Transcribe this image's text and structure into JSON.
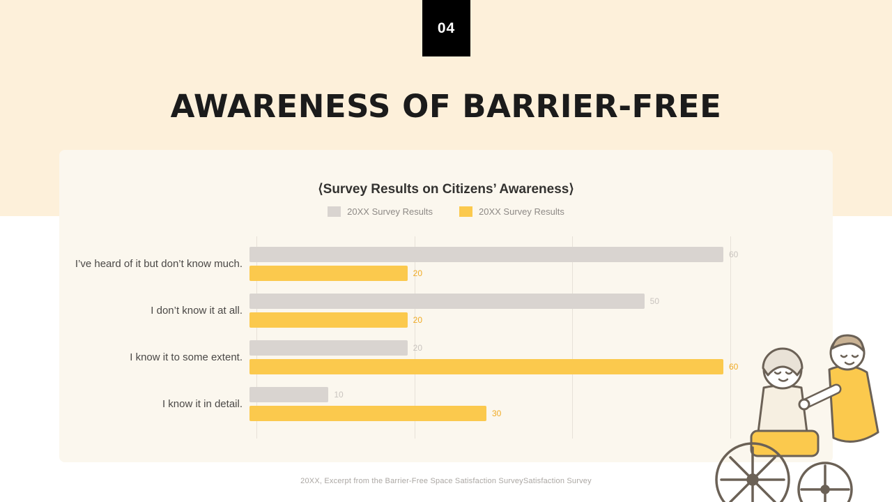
{
  "slide": {
    "badge": "04",
    "title": "AWARENESS OF BARRIER-FREE",
    "footer": "20XX, Excerpt from the Barrier-Free Space Satisfaction SurveySatisfaction Survey"
  },
  "chart_data": {
    "type": "bar",
    "orientation": "horizontal",
    "title": "⟨Survey Results on Citizens’ Awareness⟩",
    "categories": [
      "I’ve heard of it but don’t know much.",
      "I don’t know it at all.",
      "I know it to some extent.",
      "I know it in detail."
    ],
    "series": [
      {
        "name": "20XX Survey Results",
        "color": "#d9d4d0",
        "value_label_color": "#c9c4bf",
        "values": [
          60,
          50,
          20,
          10
        ]
      },
      {
        "name": "20XX Survey Results",
        "color": "#fbc94d",
        "value_label_color": "#f0ab25",
        "values": [
          20,
          20,
          60,
          30
        ]
      }
    ],
    "xlim": [
      0,
      60
    ],
    "gridlines": [
      0,
      20,
      40,
      60
    ],
    "grid": true,
    "legend_position": "top-center"
  },
  "illustration": {
    "name": "caregiver-pushing-person-in-wheelchair",
    "accent": "#fbc94d"
  },
  "colors": {
    "top_background": "#fdf0da",
    "card_background": "#fbf7ee",
    "badge_background": "#000000",
    "badge_text": "#ffffff",
    "title_text": "#1b1b1b",
    "gridline": "#e7e1d8"
  }
}
